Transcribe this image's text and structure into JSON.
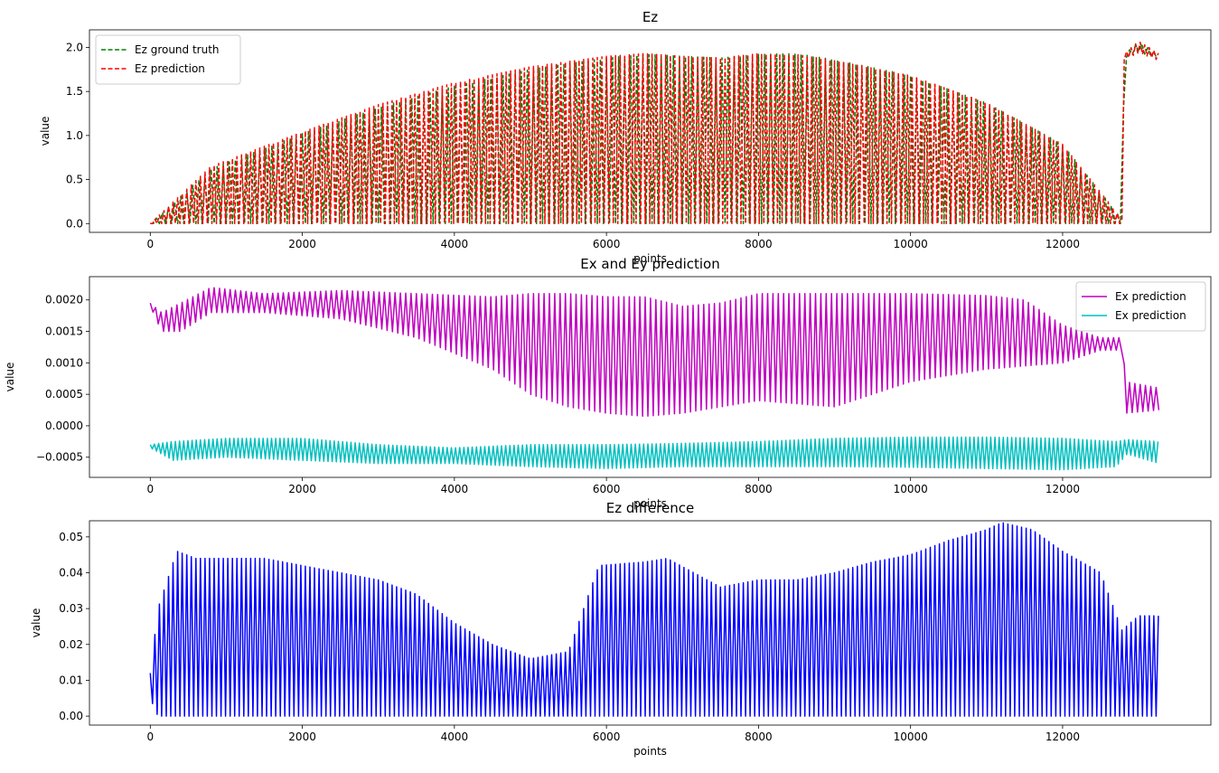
{
  "chart_data": [
    {
      "type": "line",
      "title": "Ez",
      "xlabel": "points",
      "ylabel": "value",
      "xlim": [
        -800,
        13950
      ],
      "ylim": [
        -0.1,
        2.2
      ],
      "xticks": [
        0,
        2000,
        4000,
        6000,
        8000,
        10000,
        12000
      ],
      "xtick_labels": [
        "0",
        "2000",
        "4000",
        "6000",
        "8000",
        "10000",
        "12000"
      ],
      "yticks": [
        0.0,
        0.5,
        1.0,
        1.5,
        2.0
      ],
      "ytick_labels": [
        "0.0",
        "0.5",
        "1.0",
        "1.5",
        "2.0"
      ],
      "legend_position": "upper-left",
      "series": [
        {
          "name": "Ez ground truth",
          "color": "#008000",
          "style": "dashed",
          "envelope_x": [
            0,
            800,
            2000,
            3000,
            4000,
            5000,
            6000,
            6500,
            7000,
            7500,
            8000,
            8500,
            9000,
            10000,
            11000,
            12000,
            12780,
            12810,
            13000,
            13270
          ],
          "envelope_max": [
            0.0,
            0.62,
            1.02,
            1.32,
            1.56,
            1.75,
            1.88,
            1.92,
            1.9,
            1.88,
            1.92,
            1.93,
            1.86,
            1.68,
            1.37,
            0.9,
            0.05,
            1.92,
            2.06,
            1.92
          ],
          "envelope_min": [
            0.0,
            0.0,
            0.0,
            0.0,
            0.0,
            0.0,
            0.0,
            0.0,
            0.0,
            0.0,
            0.0,
            0.0,
            0.0,
            0.0,
            0.0,
            0.0,
            0.0,
            1.88,
            1.95,
            1.86
          ]
        },
        {
          "name": "Ez prediction",
          "color": "#ff0000",
          "style": "dashed",
          "envelope_x": [
            0,
            800,
            2000,
            3000,
            4000,
            5000,
            6000,
            6500,
            7000,
            7500,
            8000,
            8500,
            9000,
            10000,
            11000,
            12000,
            12780,
            12810,
            13000,
            13270
          ],
          "envelope_max": [
            0.0,
            0.65,
            1.04,
            1.35,
            1.6,
            1.78,
            1.9,
            1.93,
            1.9,
            1.88,
            1.93,
            1.92,
            1.85,
            1.68,
            1.37,
            0.9,
            0.05,
            1.93,
            2.07,
            1.93
          ],
          "envelope_min": [
            0.0,
            0.0,
            0.0,
            0.0,
            0.0,
            0.0,
            0.0,
            0.0,
            0.0,
            0.0,
            0.0,
            0.0,
            0.0,
            0.0,
            0.0,
            0.0,
            0.0,
            1.86,
            1.94,
            1.85
          ]
        }
      ]
    },
    {
      "type": "line",
      "title": "Ex and Ey prediction",
      "xlabel": "points",
      "ylabel": "value",
      "xlim": [
        -800,
        13950
      ],
      "ylim": [
        -0.00082,
        0.00237
      ],
      "xticks": [
        0,
        2000,
        4000,
        6000,
        8000,
        10000,
        12000
      ],
      "xtick_labels": [
        "0",
        "2000",
        "4000",
        "6000",
        "8000",
        "10000",
        "12000"
      ],
      "yticks": [
        -0.0005,
        0.0,
        0.0005,
        0.001,
        0.0015,
        0.002
      ],
      "ytick_labels": [
        "−0.0005",
        "0.0000",
        "0.0005",
        "0.0010",
        "0.0015",
        "0.0020"
      ],
      "legend_position": "upper-right",
      "series": [
        {
          "name": "Ex prediction",
          "color": "#bf00bf",
          "style": "solid",
          "envelope_x": [
            0,
            150,
            400,
            800,
            1500,
            2500,
            3500,
            4500,
            5000,
            5500,
            6000,
            6500,
            7000,
            7500,
            8000,
            9000,
            10000,
            11000,
            11500,
            12000,
            12500,
            12780,
            12830,
            13270
          ],
          "envelope_max": [
            0.00195,
            0.0018,
            0.00195,
            0.0022,
            0.0021,
            0.00215,
            0.0021,
            0.00205,
            0.0021,
            0.0021,
            0.00205,
            0.00205,
            0.0019,
            0.00195,
            0.0021,
            0.0021,
            0.0021,
            0.00207,
            0.002,
            0.0016,
            0.0014,
            0.0014,
            0.0007,
            0.0006
          ],
          "envelope_min": [
            0.0019,
            0.0015,
            0.0015,
            0.0018,
            0.0018,
            0.0017,
            0.0014,
            0.0009,
            0.0005,
            0.0003,
            0.0002,
            0.00015,
            0.0002,
            0.0003,
            0.0004,
            0.0003,
            0.0007,
            0.0009,
            0.00095,
            0.001,
            0.0012,
            0.0012,
            0.0002,
            0.00025
          ]
        },
        {
          "name": "Ex prediction",
          "color": "#00bfbf",
          "style": "solid",
          "envelope_x": [
            0,
            300,
            1000,
            2000,
            3000,
            4000,
            5000,
            6000,
            7000,
            8000,
            9000,
            10000,
            11000,
            12000,
            12700,
            12850,
            13270
          ],
          "envelope_max": [
            -0.0003,
            -0.00025,
            -0.0002,
            -0.0002,
            -0.0003,
            -0.00035,
            -0.0003,
            -0.0003,
            -0.00028,
            -0.00025,
            -0.0002,
            -0.00018,
            -0.00018,
            -0.0002,
            -0.00025,
            -0.00022,
            -0.00025
          ],
          "envelope_min": [
            -0.00035,
            -0.00055,
            -0.0005,
            -0.00055,
            -0.0006,
            -0.0006,
            -0.00065,
            -0.00068,
            -0.00065,
            -0.00065,
            -0.00065,
            -0.00066,
            -0.00068,
            -0.0007,
            -0.00065,
            -0.00045,
            -0.0006
          ]
        }
      ]
    },
    {
      "type": "line",
      "title": "Ez difference",
      "xlabel": "points",
      "ylabel": "value",
      "xlim": [
        -800,
        13950
      ],
      "ylim": [
        -0.0025,
        0.0545
      ],
      "xticks": [
        0,
        2000,
        4000,
        6000,
        8000,
        10000,
        12000
      ],
      "xtick_labels": [
        "0",
        "2000",
        "4000",
        "6000",
        "8000",
        "10000",
        "12000"
      ],
      "yticks": [
        0.0,
        0.01,
        0.02,
        0.03,
        0.04,
        0.05
      ],
      "ytick_labels": [
        "0.00",
        "0.01",
        "0.02",
        "0.03",
        "0.04",
        "0.05"
      ],
      "series": [
        {
          "color": "#0000ff",
          "style": "solid",
          "envelope_x": [
            0,
            100,
            350,
            600,
            1000,
            1500,
            2000,
            2500,
            3000,
            3500,
            4000,
            4500,
            5000,
            5500,
            5900,
            6500,
            6800,
            7500,
            8000,
            8500,
            9000,
            9500,
            10000,
            10500,
            11000,
            11200,
            11600,
            12000,
            12500,
            12780,
            13000,
            13270
          ],
          "envelope_max": [
            0.012,
            0.03,
            0.046,
            0.044,
            0.044,
            0.044,
            0.042,
            0.04,
            0.038,
            0.034,
            0.026,
            0.02,
            0.016,
            0.018,
            0.042,
            0.043,
            0.044,
            0.036,
            0.038,
            0.038,
            0.04,
            0.043,
            0.045,
            0.049,
            0.052,
            0.054,
            0.052,
            0.046,
            0.04,
            0.024,
            0.028,
            0.028
          ],
          "envelope_min": [
            0.005,
            0.0,
            0.0,
            0.0,
            0.0,
            0.0,
            0.0,
            0.0,
            0.0,
            0.0,
            0.0,
            0.0,
            0.0,
            0.0,
            0.0,
            0.0,
            0.0,
            0.0,
            0.0,
            0.0,
            0.0,
            0.0,
            0.0,
            0.0,
            0.0,
            0.0,
            0.0,
            0.0,
            0.0,
            0.0,
            0.0,
            0.0
          ]
        }
      ]
    }
  ]
}
